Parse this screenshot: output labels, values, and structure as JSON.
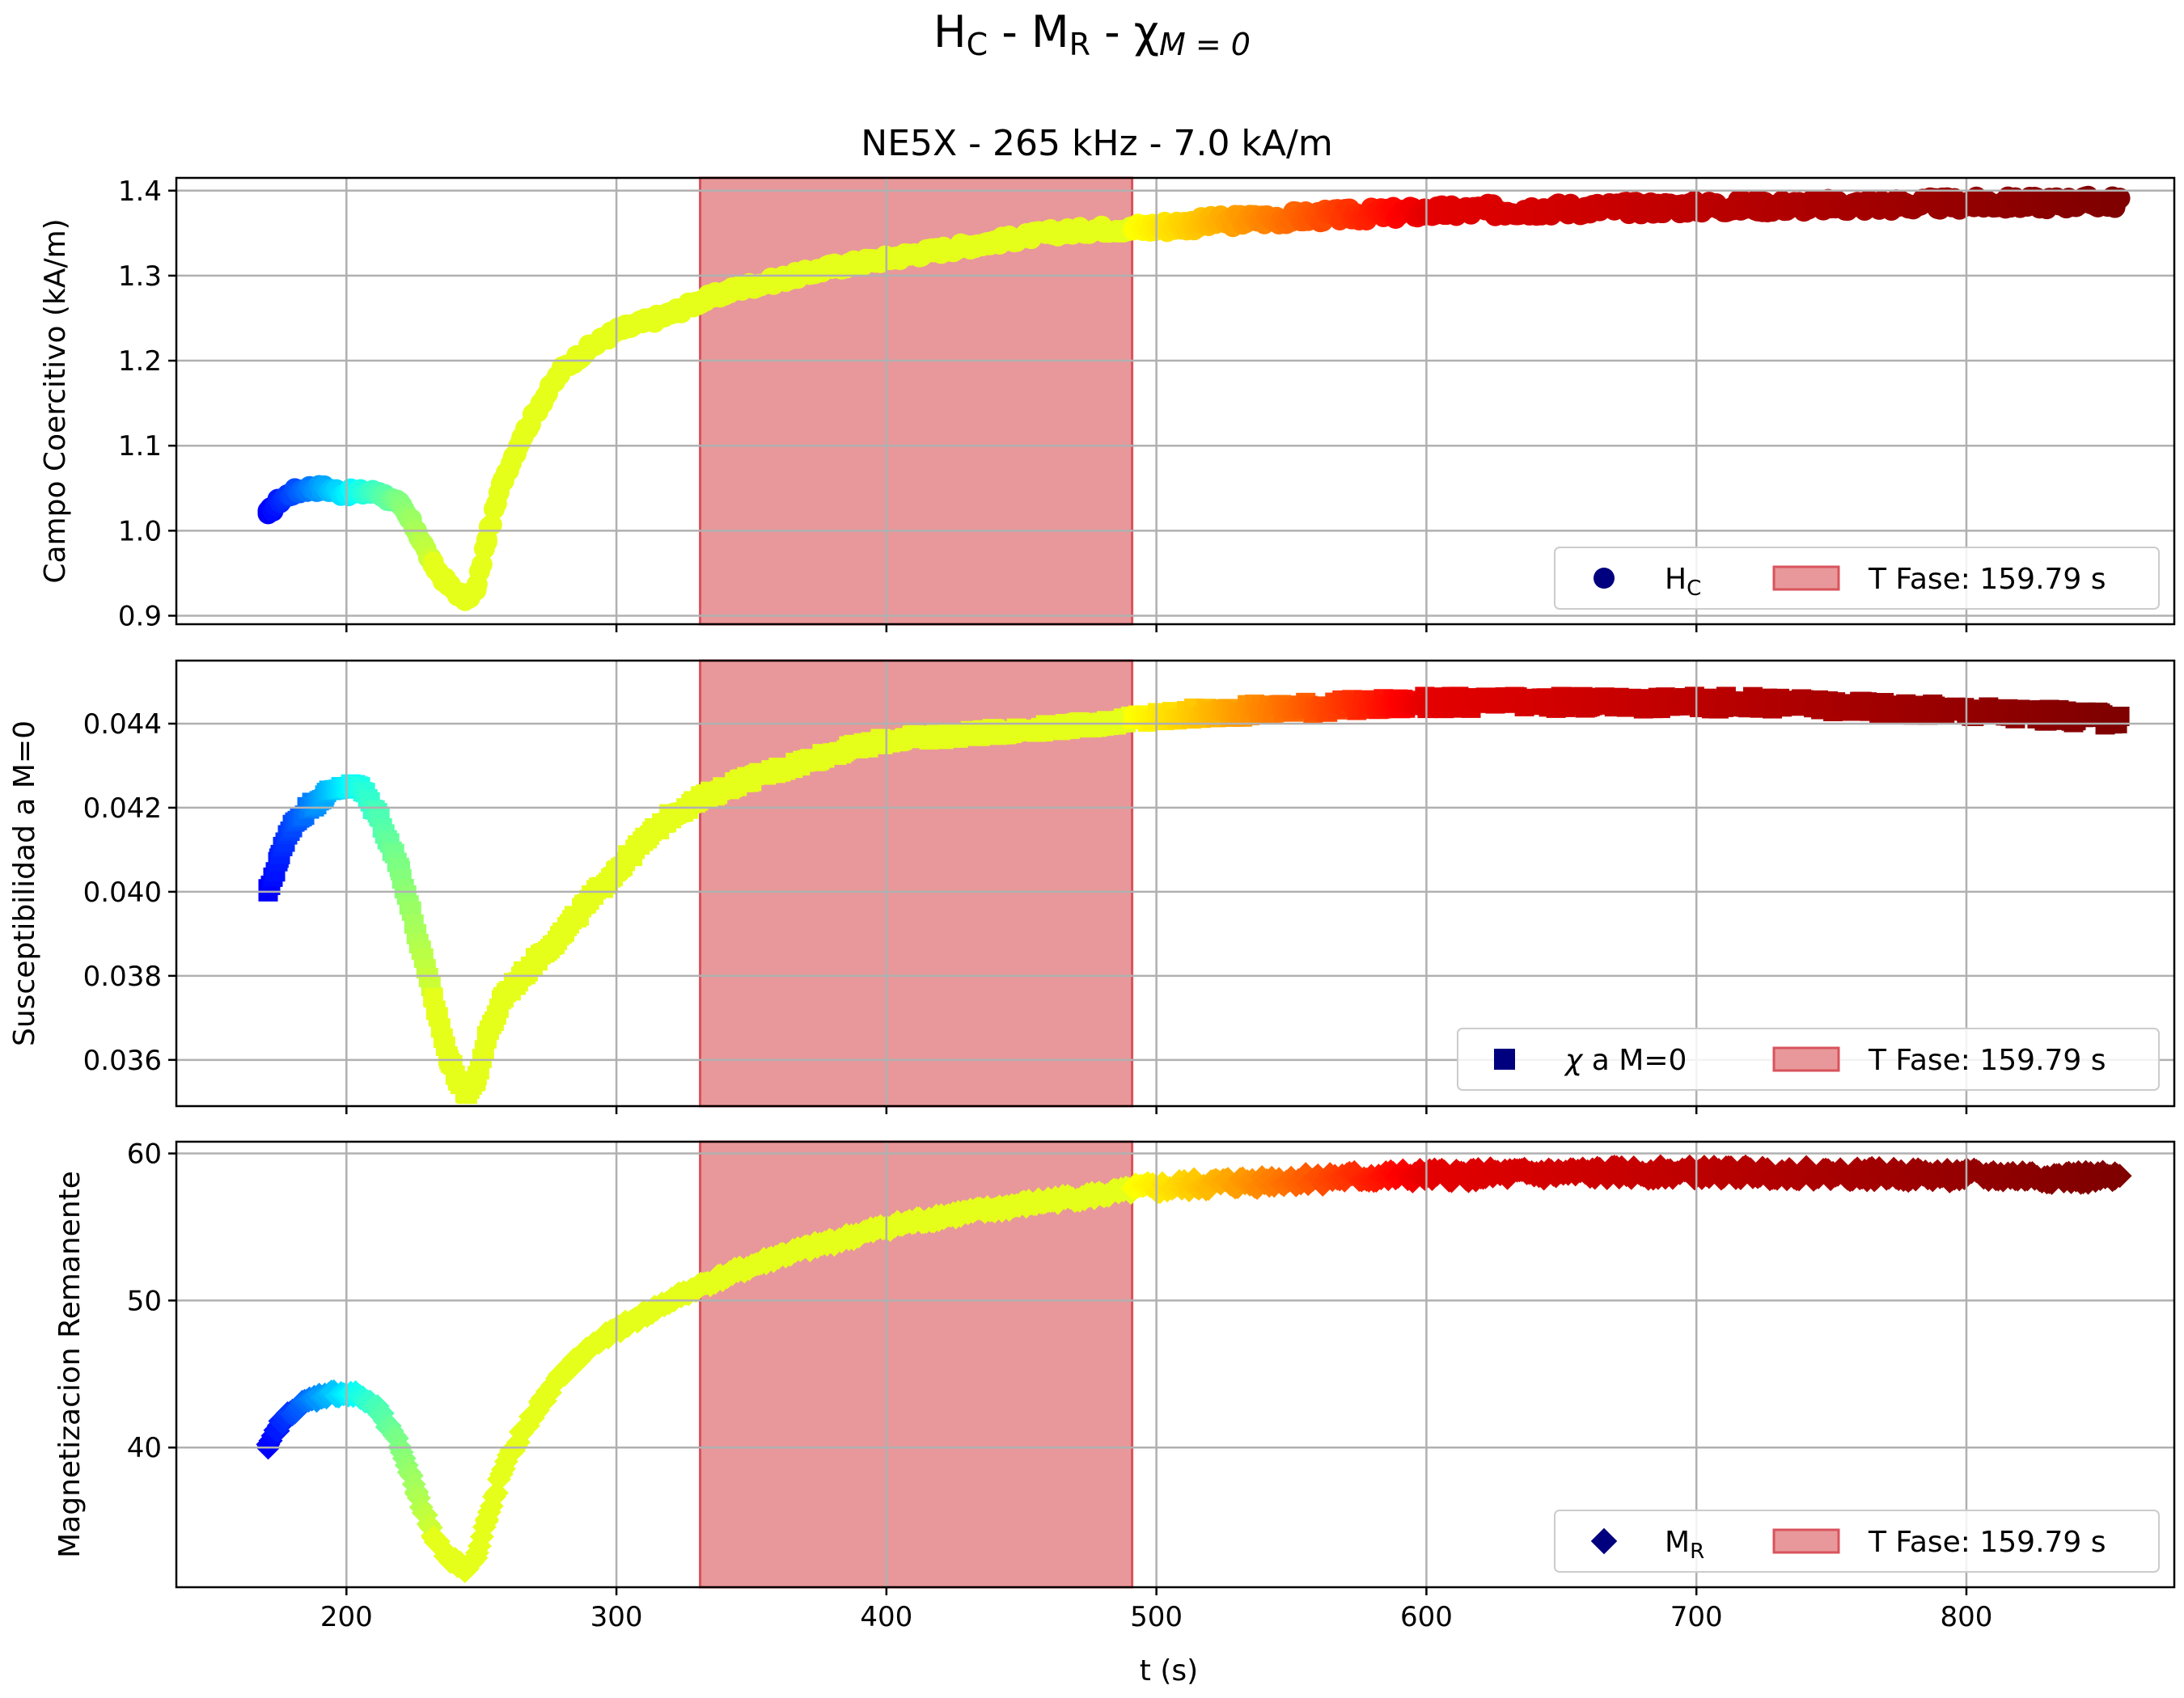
{
  "figure": {
    "suptitle": {
      "main": "H",
      "sub1": "C",
      "mid1": " - M",
      "sub2": "R",
      "mid2": " - χ",
      "sub3": "M = 0"
    },
    "title": "NE5X - 265 kHz -  7.0 kA/m",
    "xlabel": "t (s)",
    "x_ticks": [
      "200",
      "300",
      "400",
      "500",
      "600",
      "700",
      "800"
    ],
    "x_tick_values": [
      200,
      300,
      400,
      500,
      600,
      700,
      800
    ],
    "xlim": [
      137,
      877
    ],
    "colors": {
      "marker_legend": "#00007f",
      "span_fill": "#e8989a",
      "span_edge": "#d9535c",
      "grid": "#b0b0b0",
      "colormap": "jet"
    }
  },
  "chart_data": [
    {
      "type": "scatter",
      "marker": "circle",
      "ylabel": "Campo Coercitivo (kA/m)",
      "ylim": [
        0.89,
        1.415
      ],
      "y_ticks": [
        "0.9",
        "1.0",
        "1.1",
        "1.2",
        "1.3",
        "1.4"
      ],
      "y_tick_values": [
        0.9,
        1.0,
        1.1,
        1.2,
        1.3,
        1.4
      ],
      "legend": {
        "series_main": "H",
        "series_sub": "C",
        "span": "T Fase: 159.79 s",
        "location": "lower right"
      },
      "span": [
        331,
        491
      ],
      "x": [
        171,
        175,
        180,
        186,
        192,
        198,
        205,
        212,
        220,
        226,
        232,
        238,
        244,
        248,
        252,
        258,
        265,
        272,
        280,
        290,
        300,
        310,
        320,
        331,
        345,
        360,
        380,
        400,
        420,
        440,
        460,
        480,
        491,
        510,
        530,
        560,
        600,
        640,
        680,
        720,
        760,
        800,
        830,
        855
      ],
      "y": [
        1.02,
        1.035,
        1.045,
        1.05,
        1.05,
        1.045,
        1.045,
        1.045,
        1.03,
        1.0,
        0.96,
        0.935,
        0.92,
        0.93,
        0.99,
        1.06,
        1.11,
        1.15,
        1.19,
        1.215,
        1.235,
        1.245,
        1.255,
        1.27,
        1.285,
        1.295,
        1.31,
        1.32,
        1.33,
        1.34,
        1.35,
        1.355,
        1.355,
        1.36,
        1.365,
        1.37,
        1.375,
        1.378,
        1.38,
        1.382,
        1.383,
        1.385,
        1.386,
        1.387
      ]
    },
    {
      "type": "scatter",
      "marker": "square",
      "ylabel": "Susceptibilidad a M=0",
      "ylim": [
        0.0349,
        0.0455
      ],
      "y_ticks": [
        "0.036",
        "0.038",
        "0.040",
        "0.042",
        "0.044"
      ],
      "y_tick_values": [
        0.036,
        0.038,
        0.04,
        0.042,
        0.044
      ],
      "legend": {
        "series_main": "χ a M=0",
        "series_sub": "",
        "span": "T Fase: 159.79 s",
        "location": "lower right"
      },
      "span": [
        331,
        491
      ],
      "x": [
        171,
        175,
        180,
        186,
        192,
        198,
        205,
        212,
        220,
        226,
        232,
        238,
        244,
        248,
        252,
        258,
        265,
        272,
        280,
        290,
        300,
        310,
        320,
        331,
        345,
        360,
        380,
        400,
        420,
        440,
        460,
        480,
        491,
        510,
        530,
        560,
        600,
        640,
        680,
        720,
        760,
        800,
        830,
        855
      ],
      "y": [
        0.04,
        0.0408,
        0.0416,
        0.042,
        0.0423,
        0.0425,
        0.0425,
        0.0418,
        0.0405,
        0.039,
        0.0375,
        0.036,
        0.0352,
        0.0355,
        0.0365,
        0.0375,
        0.038,
        0.0385,
        0.039,
        0.0398,
        0.0405,
        0.0412,
        0.0418,
        0.0422,
        0.0426,
        0.0429,
        0.0433,
        0.0436,
        0.0437,
        0.0438,
        0.0439,
        0.044,
        0.0441,
        0.0442,
        0.0443,
        0.0444,
        0.0445,
        0.0445,
        0.0445,
        0.0445,
        0.0444,
        0.0443,
        0.0442,
        0.0441
      ]
    },
    {
      "type": "scatter",
      "marker": "diamond",
      "ylabel": "Magnetizacion Remanente",
      "ylim": [
        30.5,
        60.8
      ],
      "y_ticks": [
        "40",
        "50",
        "60"
      ],
      "y_tick_values": [
        40,
        50,
        60
      ],
      "legend": {
        "series_main": "M",
        "series_sub": "R",
        "span": "T Fase: 159.79 s",
        "location": "lower right"
      },
      "span": [
        331,
        491
      ],
      "x": [
        171,
        175,
        180,
        186,
        192,
        198,
        205,
        212,
        220,
        226,
        232,
        238,
        244,
        248,
        252,
        258,
        265,
        272,
        280,
        290,
        300,
        310,
        320,
        331,
        345,
        360,
        380,
        400,
        420,
        440,
        460,
        480,
        491,
        510,
        530,
        560,
        600,
        640,
        680,
        720,
        760,
        800,
        830,
        855
      ],
      "y": [
        40.0,
        41.5,
        42.5,
        43.2,
        43.6,
        43.7,
        43.5,
        42.5,
        40.0,
        37.0,
        34.0,
        32.5,
        31.8,
        32.5,
        35.0,
        38.5,
        41.0,
        43.0,
        45.0,
        46.8,
        48.0,
        49.0,
        50.0,
        51.0,
        52.0,
        53.0,
        54.0,
        55.0,
        55.7,
        56.2,
        56.8,
        57.2,
        57.5,
        57.8,
        58.0,
        58.3,
        58.5,
        58.6,
        58.7,
        58.7,
        58.6,
        58.5,
        58.4,
        58.3
      ]
    }
  ]
}
